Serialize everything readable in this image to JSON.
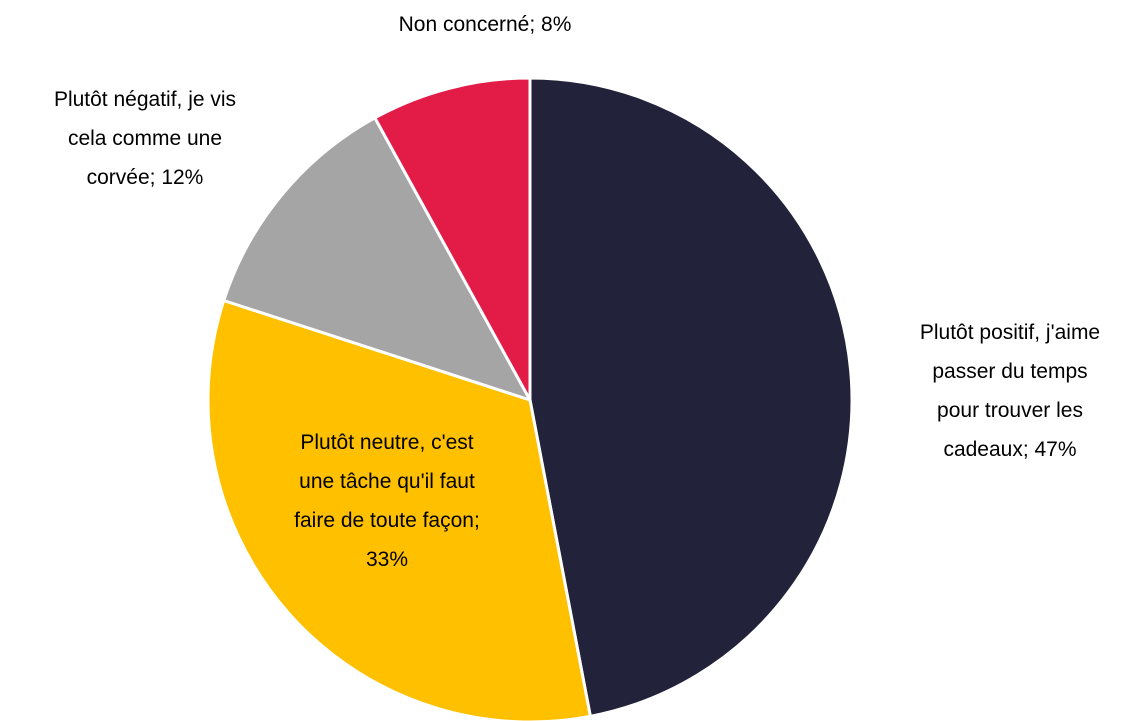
{
  "chart_data": {
    "type": "pie",
    "values": [
      47,
      33,
      12,
      8
    ],
    "value_labels": [
      [
        "Plutôt positif, j'aime",
        "passer du temps",
        "pour trouver les",
        "cadeaux; 47%"
      ],
      [
        "Plutôt neutre, c'est",
        "une tâche qu'il faut",
        "faire de toute façon;",
        "33%"
      ],
      [
        "Plutôt négatif, je vis",
        "cela comme une",
        "corvée; 12%"
      ],
      [
        "Non concerné; 8%"
      ]
    ],
    "colors": [
      "#22223a",
      "#ffc000",
      "#a5a5a5",
      "#e31b47"
    ]
  }
}
